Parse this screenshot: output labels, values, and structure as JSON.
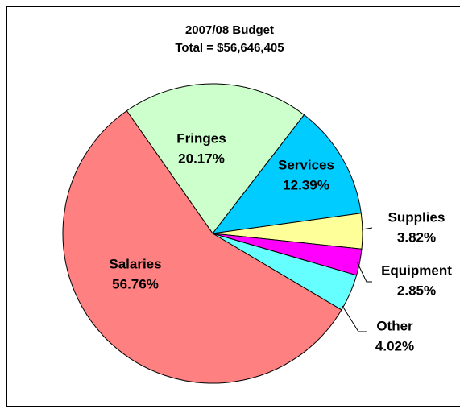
{
  "chart_data": {
    "type": "pie",
    "title": "2007/08 Budget",
    "subtitle": "Total = $56,646,405",
    "categories": [
      "Fringes",
      "Services",
      "Supplies",
      "Equipment",
      "Other",
      "Salaries"
    ],
    "values": [
      20.17,
      12.39,
      3.82,
      2.85,
      4.02,
      56.76
    ],
    "value_labels": [
      "20.17%",
      "12.39%",
      "3.82%",
      "2.85%",
      "4.02%",
      "56.76%"
    ],
    "colors": [
      "#CCFFCC",
      "#00CCFF",
      "#FFFF99",
      "#FF00FF",
      "#66FFFF",
      "#FF8080"
    ]
  }
}
